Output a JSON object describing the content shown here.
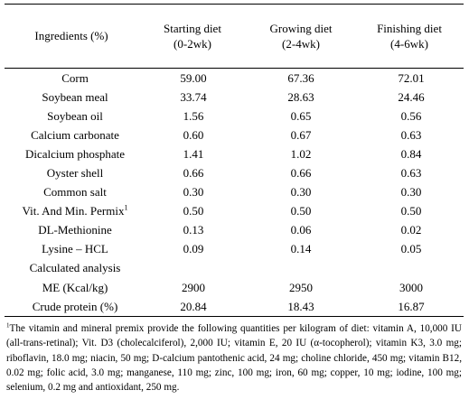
{
  "header": {
    "col0": "Ingredients (%)",
    "cols": [
      {
        "line1": "Starting diet",
        "line2": "(0-2wk)"
      },
      {
        "line1": "Growing diet",
        "line2": "(2-4wk)"
      },
      {
        "line1": "Finishing diet",
        "line2": "(4-6wk)"
      }
    ]
  },
  "rows": [
    {
      "name": "Corm",
      "v": [
        "59.00",
        "67.36",
        "72.01"
      ]
    },
    {
      "name": "Soybean meal",
      "v": [
        "33.74",
        "28.63",
        "24.46"
      ]
    },
    {
      "name": "Soybean oil",
      "v": [
        "1.56",
        "0.65",
        "0.56"
      ]
    },
    {
      "name": "Calcium carbonate",
      "v": [
        "0.60",
        "0.67",
        "0.63"
      ]
    },
    {
      "name": "Dicalcium phosphate",
      "v": [
        "1.41",
        "1.02",
        "0.84"
      ]
    },
    {
      "name": "Oyster shell",
      "v": [
        "0.66",
        "0.66",
        "0.63"
      ]
    },
    {
      "name": "Common salt",
      "v": [
        "0.30",
        "0.30",
        "0.30"
      ]
    },
    {
      "name": "Vit. And Min. Permix",
      "sup": "1",
      "v": [
        "0.50",
        "0.50",
        "0.50"
      ]
    },
    {
      "name": "DL-Methionine",
      "v": [
        "0.13",
        "0.06",
        "0.02"
      ]
    },
    {
      "name": "Lysine – HCL",
      "v": [
        "0.09",
        "0.14",
        "0.05"
      ]
    },
    {
      "name": "Calculated analysis",
      "v": [
        "",
        "",
        ""
      ]
    },
    {
      "name": "ME (Kcal/kg)",
      "v": [
        "2900",
        "2950",
        "3000"
      ]
    },
    {
      "name": "Crude protein (%)",
      "v": [
        "20.84",
        "18.43",
        "16.87"
      ]
    }
  ],
  "footnote": {
    "marker": "1",
    "text": "The vitamin and mineral premix provide the following quantities per kilogram of diet: vitamin A, 10,000 IU (all-trans-retinal); Vit. D3 (cholecalciferol), 2,000 IU; vitamin E, 20 IU (α-tocopherol); vitamin K3, 3.0 mg; riboflavin, 18.0 mg; niacin, 50 mg; D-calcium pantothenic acid, 24 mg; choline chloride, 450 mg; vitamin B12, 0.02 mg; folic acid, 3.0 mg; manganese, 110 mg; zinc, 100 mg; iron, 60 mg; copper, 10 mg; iodine, 100 mg; selenium, 0.2 mg and antioxidant, 250 mg."
  }
}
